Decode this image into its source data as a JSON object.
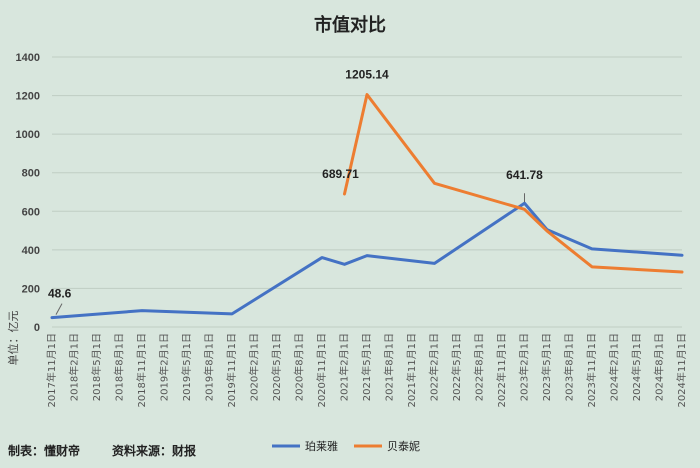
{
  "chart_data": {
    "type": "line",
    "title": "市值对比",
    "ylabel": "单位：亿元",
    "ylim": [
      0,
      1400
    ],
    "yticks": [
      0,
      200,
      400,
      600,
      800,
      1000,
      1200,
      1400
    ],
    "grid": true,
    "legend_position": "bottom",
    "categories": [
      "2017年11月1日",
      "2018年2月1日",
      "2018年5月1日",
      "2018年8月1日",
      "2018年11月1日",
      "2019年2月1日",
      "2019年5月1日",
      "2019年8月1日",
      "2019年11月1日",
      "2020年2月1日",
      "2020年5月1日",
      "2020年8月1日",
      "2020年11月1日",
      "2021年2月1日",
      "2021年5月1日",
      "2021年8月1日",
      "2021年11月1日",
      "2022年2月1日",
      "2022年5月1日",
      "2022年8月1日",
      "2022年11月1日",
      "2023年2月1日",
      "2023年5月1日",
      "2023年8月1日",
      "2023年11月1日",
      "2024年2月1日",
      "2024年5月1日",
      "2024年8月1日",
      "2024年11月1日"
    ],
    "series": [
      {
        "name": "珀莱雅",
        "color": "#4472c4",
        "values": [
          48.6,
          null,
          null,
          null,
          85,
          null,
          null,
          null,
          68,
          null,
          null,
          null,
          360,
          325,
          370,
          null,
          null,
          330,
          null,
          null,
          null,
          641.78,
          505,
          null,
          405,
          null,
          null,
          null,
          372
        ]
      },
      {
        "name": "贝泰妮",
        "color": "#ed7d31",
        "values": [
          null,
          null,
          null,
          null,
          null,
          null,
          null,
          null,
          null,
          null,
          null,
          null,
          null,
          689.71,
          1205.14,
          null,
          null,
          745,
          null,
          null,
          null,
          610,
          498,
          null,
          312,
          null,
          null,
          null,
          285
        ]
      }
    ],
    "annotations": [
      {
        "series": "珀莱雅",
        "index": 0,
        "text": "48.6"
      },
      {
        "series": "贝泰妮",
        "index": 13,
        "text": "689.71"
      },
      {
        "series": "贝泰妮",
        "index": 14,
        "text": "1205.14"
      },
      {
        "series": "珀莱雅",
        "index": 21,
        "text": "641.78"
      }
    ]
  },
  "footer": {
    "maker": "制表：懂财帝",
    "source": "资料来源：财报"
  }
}
